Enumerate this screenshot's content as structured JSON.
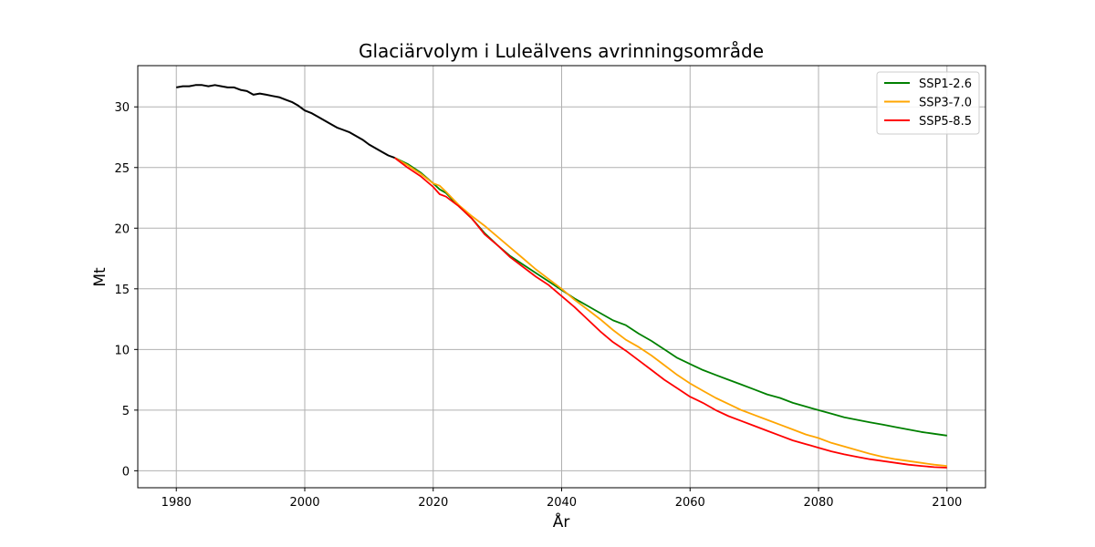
{
  "chart_data": {
    "type": "line",
    "title": "Glaciärvolym i Luleälvens avrinningsområde",
    "xlabel": "År",
    "ylabel": "Mt",
    "xlim": [
      1974,
      2106
    ],
    "ylim": [
      -1.4,
      33.4
    ],
    "xticks": [
      1980,
      2000,
      2020,
      2040,
      2060,
      2080,
      2100
    ],
    "yticks": [
      0,
      5,
      10,
      15,
      20,
      25,
      30
    ],
    "grid": true,
    "legend_position": "top-right",
    "historical": {
      "color": "#000000",
      "x": [
        1980,
        1981,
        1982,
        1983,
        1984,
        1985,
        1986,
        1987,
        1988,
        1989,
        1990,
        1991,
        1992,
        1993,
        1994,
        1995,
        1996,
        1997,
        1998,
        1999,
        2000,
        2001,
        2002,
        2003,
        2004,
        2005,
        2006,
        2007,
        2008,
        2009,
        2010,
        2011,
        2012,
        2013,
        2014
      ],
      "y": [
        31.6,
        31.7,
        31.7,
        31.8,
        31.8,
        31.7,
        31.8,
        31.7,
        31.6,
        31.6,
        31.4,
        31.3,
        31.0,
        31.1,
        31.0,
        30.9,
        30.8,
        30.6,
        30.4,
        30.1,
        29.7,
        29.5,
        29.2,
        28.9,
        28.6,
        28.3,
        28.1,
        27.9,
        27.6,
        27.3,
        26.9,
        26.6,
        26.3,
        26.0,
        25.8
      ]
    },
    "x": [
      2014,
      2016,
      2018,
      2020,
      2021,
      2022,
      2024,
      2026,
      2028,
      2030,
      2032,
      2034,
      2036,
      2038,
      2040,
      2042,
      2044,
      2046,
      2048,
      2050,
      2052,
      2054,
      2056,
      2058,
      2060,
      2062,
      2064,
      2066,
      2068,
      2070,
      2072,
      2074,
      2076,
      2078,
      2080,
      2082,
      2084,
      2086,
      2088,
      2090,
      2092,
      2094,
      2096,
      2098,
      2100
    ],
    "series": [
      {
        "name": "SSP1-2.6",
        "color": "#008000",
        "values": [
          25.8,
          25.3,
          24.6,
          23.7,
          23.2,
          22.9,
          21.8,
          20.8,
          19.6,
          18.6,
          17.7,
          17.0,
          16.3,
          15.6,
          14.9,
          14.2,
          13.6,
          13.0,
          12.4,
          12.0,
          11.3,
          10.7,
          10.0,
          9.3,
          8.8,
          8.3,
          7.9,
          7.5,
          7.1,
          6.7,
          6.3,
          6.0,
          5.6,
          5.3,
          5.0,
          4.7,
          4.4,
          4.2,
          4.0,
          3.8,
          3.6,
          3.4,
          3.2,
          3.05,
          2.9
        ]
      },
      {
        "name": "SSP3-7.0",
        "color": "#FFA500",
        "values": [
          25.8,
          25.2,
          24.5,
          23.7,
          23.5,
          23.0,
          21.9,
          21.0,
          20.2,
          19.3,
          18.4,
          17.5,
          16.6,
          15.8,
          15.0,
          14.1,
          13.3,
          12.5,
          11.6,
          10.8,
          10.2,
          9.5,
          8.7,
          7.9,
          7.2,
          6.6,
          6.0,
          5.5,
          5.0,
          4.6,
          4.2,
          3.8,
          3.4,
          3.0,
          2.7,
          2.3,
          2.0,
          1.7,
          1.4,
          1.15,
          0.95,
          0.8,
          0.65,
          0.5,
          0.4
        ]
      },
      {
        "name": "SSP5-8.5",
        "color": "#FF0000",
        "values": [
          25.8,
          25.0,
          24.3,
          23.4,
          22.8,
          22.6,
          21.8,
          20.8,
          19.5,
          18.6,
          17.6,
          16.8,
          16.0,
          15.3,
          14.4,
          13.5,
          12.5,
          11.5,
          10.6,
          9.9,
          9.1,
          8.3,
          7.5,
          6.8,
          6.1,
          5.6,
          5.0,
          4.5,
          4.1,
          3.7,
          3.3,
          2.9,
          2.5,
          2.2,
          1.9,
          1.6,
          1.35,
          1.15,
          0.95,
          0.8,
          0.65,
          0.5,
          0.4,
          0.3,
          0.25
        ]
      }
    ]
  }
}
